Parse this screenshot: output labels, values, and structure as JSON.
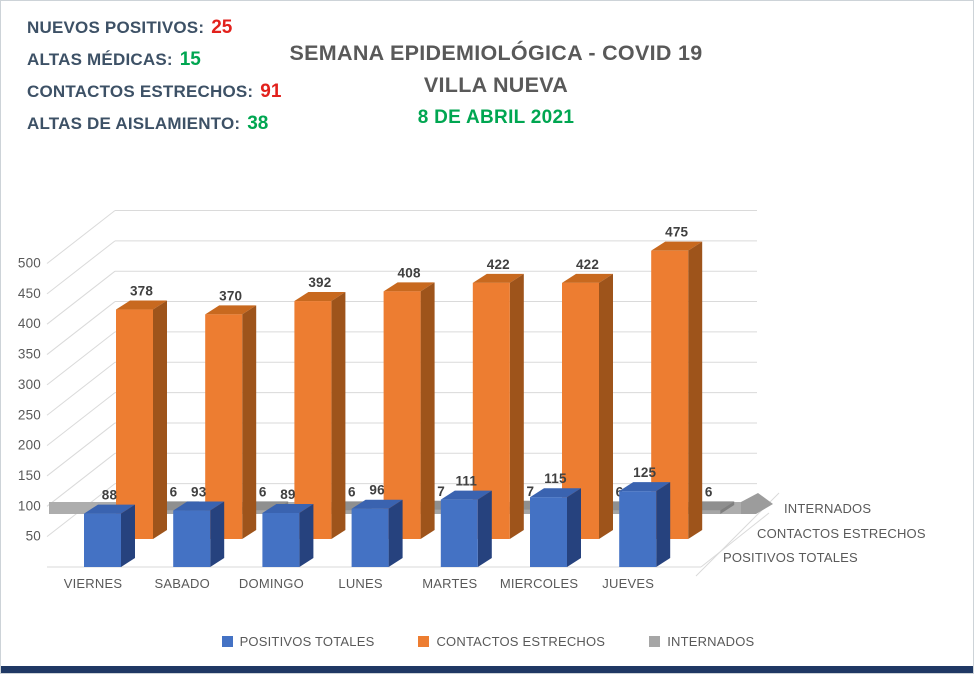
{
  "stats": [
    {
      "label": "NUEVOS POSITIVOS:",
      "value": "25",
      "status": "red"
    },
    {
      "label": "ALTAS MÉDICAS:",
      "value": "15",
      "status": "green"
    },
    {
      "label": "CONTACTOS ESTRECHOS:",
      "value": "91",
      "status": "red"
    },
    {
      "label": "ALTAS DE AISLAMIENTO:",
      "value": "38",
      "status": "green"
    }
  ],
  "title": {
    "line1": "SEMANA EPIDEMIOLÓGICA - COVID 19",
    "line2": "VILLA NUEVA",
    "date": "8 DE ABRIL 2021"
  },
  "chart_data": {
    "type": "bar",
    "style": "3d-column",
    "title": "",
    "categories": [
      "VIERNES",
      "SABADO",
      "DOMINGO",
      "LUNES",
      "MARTES",
      "MIERCOLES",
      "JUEVES"
    ],
    "series": [
      {
        "name": "POSITIVOS TOTALES",
        "color": "#4472c4",
        "color_top": "#3a63b0",
        "color_side": "#26427e",
        "values": [
          88,
          93,
          89,
          96,
          111,
          115,
          125
        ]
      },
      {
        "name": "CONTACTOS ESTRECHOS",
        "color": "#ed7d31",
        "color_top": "#c8691f",
        "color_side": "#9e541b",
        "values": [
          378,
          370,
          392,
          408,
          422,
          422,
          475
        ]
      },
      {
        "name": "INTERNADOS",
        "color": "#a6a6a6",
        "color_top": "#8f8f8f",
        "color_side": "#7f7f7f",
        "values": [
          6,
          6,
          6,
          7,
          7,
          6,
          6
        ]
      }
    ],
    "y_axis": {
      "min": 0,
      "max": 500,
      "ticks": [
        50,
        100,
        150,
        200,
        250,
        300,
        350,
        400,
        450,
        500
      ]
    },
    "depth_axis_labels": [
      "INTERNADOS",
      "CONTACTOS ESTRECHOS",
      "POSITIVOS TOTALES"
    ],
    "grid": true,
    "legend_position": "bottom"
  },
  "legend": [
    {
      "label": "POSITIVOS TOTALES"
    },
    {
      "label": "CONTACTOS ESTRECHOS"
    },
    {
      "label": "INTERNADOS"
    }
  ],
  "colors": {
    "stat_label": "#3d5166",
    "value_red": "#e2211c",
    "value_green": "#00a651",
    "title_gray": "#595959",
    "date_green": "#00a651",
    "gridline": "#dadada",
    "axis_text": "#595959",
    "bar_label": "#404040",
    "bottom_bar": "#1f3864"
  }
}
